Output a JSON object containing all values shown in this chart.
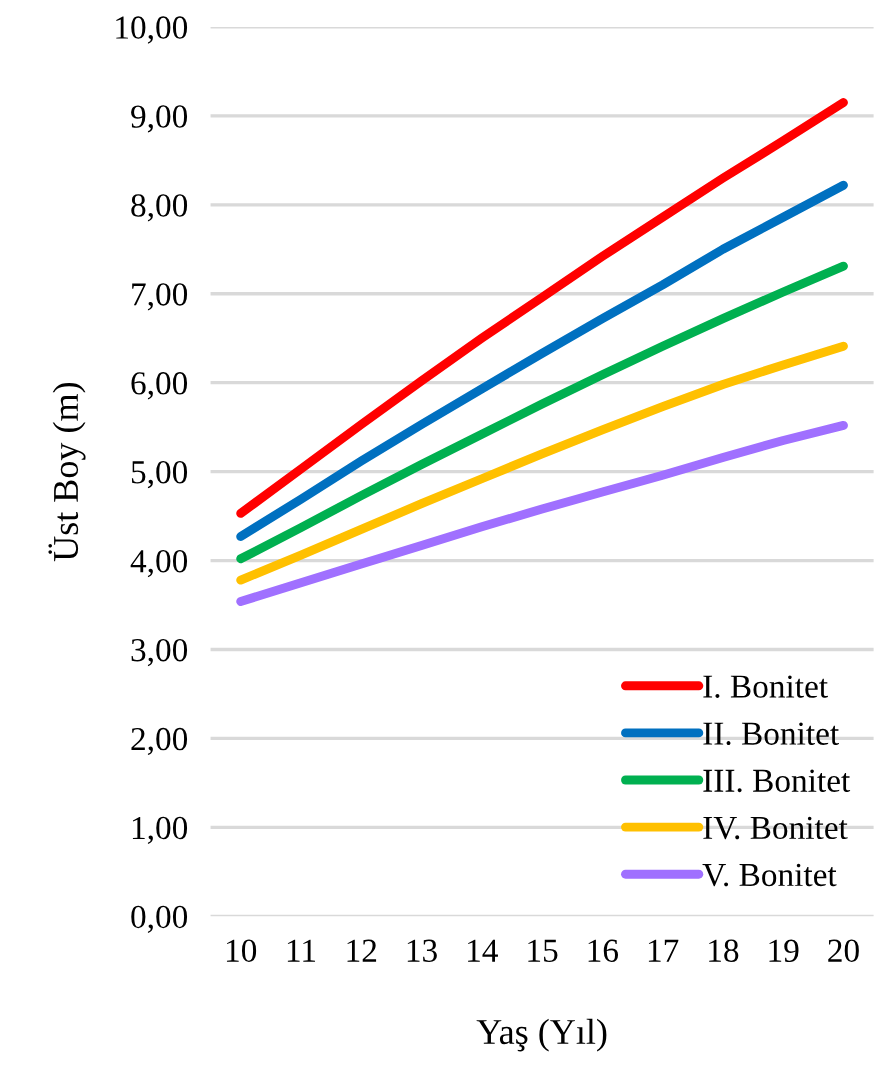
{
  "chart_data": {
    "type": "line",
    "xlabel": "Yaş (Yıl)",
    "ylabel": "Üst Boy (m)",
    "categories": [
      "10",
      "11",
      "12",
      "13",
      "14",
      "15",
      "16",
      "17",
      "18",
      "19",
      "20"
    ],
    "ylim": [
      0,
      10
    ],
    "yticks": [
      {
        "value": 0,
        "label": "0,00"
      },
      {
        "value": 1,
        "label": "1,00"
      },
      {
        "value": 2,
        "label": "2,00"
      },
      {
        "value": 3,
        "label": "3,00"
      },
      {
        "value": 4,
        "label": "4,00"
      },
      {
        "value": 5,
        "label": "5,00"
      },
      {
        "value": 6,
        "label": "6,00"
      },
      {
        "value": 7,
        "label": "7,00"
      },
      {
        "value": 8,
        "label": "8,00"
      },
      {
        "value": 9,
        "label": "9,00"
      },
      {
        "value": 10,
        "label": "10,00"
      }
    ],
    "grid": "y",
    "legend": "bottom right",
    "marker": "none",
    "line_style": "solid",
    "series": [
      {
        "name": "I. Bonitet",
        "color": "#ff0000",
        "values": [
          4.53,
          5.03,
          5.53,
          6.02,
          6.5,
          6.96,
          7.42,
          7.86,
          8.3,
          8.72,
          9.15
        ]
      },
      {
        "name": "II. Bonitet",
        "color": "#0070c0",
        "values": [
          4.27,
          4.69,
          5.12,
          5.53,
          5.93,
          6.33,
          6.72,
          7.1,
          7.5,
          7.86,
          8.22
        ]
      },
      {
        "name": "III. Bonitet",
        "color": "#00b050",
        "values": [
          4.02,
          4.37,
          4.73,
          5.08,
          5.42,
          5.76,
          6.09,
          6.41,
          6.72,
          7.02,
          7.31
        ]
      },
      {
        "name": "IV. Bonitet",
        "color": "#ffc000",
        "values": [
          3.78,
          4.06,
          4.35,
          4.64,
          4.92,
          5.2,
          5.47,
          5.73,
          5.98,
          6.2,
          6.41
        ]
      },
      {
        "name": "V. Bonitet",
        "color": "#a070ff",
        "values": [
          3.54,
          3.75,
          3.96,
          4.17,
          4.38,
          4.58,
          4.77,
          4.96,
          5.16,
          5.35,
          5.52
        ]
      }
    ]
  }
}
